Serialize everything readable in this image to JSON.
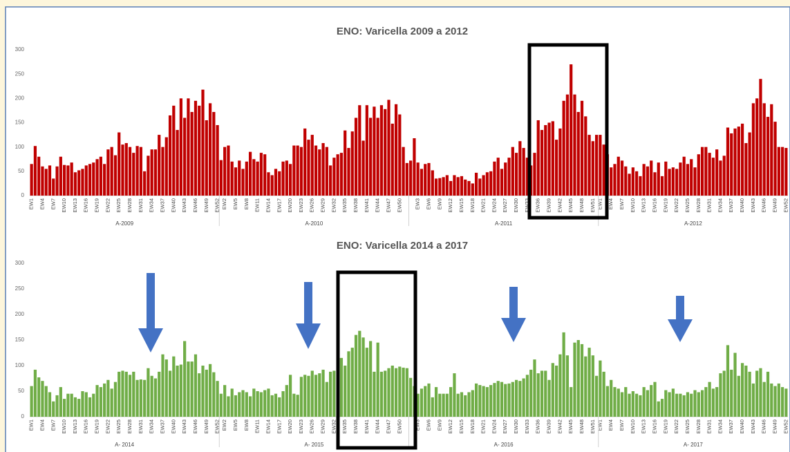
{
  "chart_data": [
    {
      "type": "bar",
      "title": "ENO: Varicella 2009 a 2012",
      "color": "#c00000",
      "ylim": [
        0,
        300
      ],
      "yticks": [
        0,
        50,
        100,
        150,
        200,
        250,
        300
      ],
      "groups": [
        {
          "name": "A-2009",
          "categories": [
            "EW1",
            null,
            null,
            "EW4",
            null,
            null,
            "EW7",
            null,
            null,
            "EW10",
            null,
            null,
            "EW13",
            null,
            null,
            "EW16",
            null,
            null,
            "EW19",
            null,
            null,
            "EW22",
            null,
            null,
            "EW25",
            null,
            null,
            "EW28",
            null,
            null,
            "EW31",
            null,
            null,
            "EW34",
            null,
            null,
            "EW37",
            null,
            null,
            "EW40",
            null,
            null,
            "EW43",
            null,
            null,
            "EW46",
            null,
            null,
            "EW49",
            null,
            null,
            "EW52"
          ],
          "values": [
            65,
            102,
            80,
            60,
            55,
            62,
            35,
            60,
            80,
            63,
            62,
            68,
            48,
            52,
            55,
            62,
            65,
            68,
            75,
            80,
            65,
            95,
            100,
            83,
            130,
            105,
            108,
            100,
            88,
            102,
            100,
            50,
            82,
            95,
            95,
            125,
            100,
            120,
            165,
            185,
            135,
            200,
            160,
            200,
            172,
            195,
            185,
            218,
            155,
            190,
            172,
            145
          ]
        },
        {
          "name": "A-2010",
          "categories": [
            null,
            "EW2",
            null,
            null,
            "EW5",
            null,
            null,
            "EW8",
            null,
            null,
            "EW11",
            null,
            null,
            "EW14",
            null,
            null,
            "EW17",
            null,
            null,
            "EW20",
            null,
            null,
            "EW23",
            null,
            null,
            "EW26",
            null,
            null,
            "EW29",
            null,
            null,
            "EW32",
            null,
            null,
            "EW35",
            null,
            null,
            "EW38",
            null,
            null,
            "EW41",
            null,
            null,
            "EW44",
            null,
            null,
            "EW47",
            null,
            null,
            "EW50",
            null,
            null
          ],
          "values": [
            73,
            100,
            103,
            70,
            58,
            72,
            55,
            70,
            90,
            75,
            70,
            88,
            85,
            48,
            42,
            55,
            50,
            70,
            72,
            65,
            103,
            103,
            100,
            138,
            115,
            125,
            103,
            95,
            108,
            100,
            62,
            78,
            85,
            88,
            134,
            98,
            132,
            160,
            186,
            113,
            186,
            160,
            183,
            160,
            186,
            178,
            197,
            148,
            188,
            167,
            100,
            67
          ]
        },
        {
          "name": "A-2011",
          "categories": [
            null,
            null,
            "EW3",
            null,
            null,
            "EW6",
            null,
            null,
            "EW9",
            null,
            null,
            "EW12",
            null,
            null,
            "EW15",
            null,
            null,
            "EW18",
            null,
            null,
            "EW21",
            null,
            null,
            "EW24",
            null,
            null,
            "EW27",
            null,
            null,
            "EW30",
            null,
            null,
            "EW33",
            null,
            null,
            "EW36",
            null,
            null,
            "EW39",
            null,
            null,
            "EW42",
            null,
            null,
            "EW45",
            null,
            null,
            "EW48",
            null,
            null,
            "EW51",
            null
          ],
          "values": [
            72,
            118,
            68,
            55,
            65,
            67,
            52,
            35,
            36,
            38,
            42,
            30,
            42,
            38,
            40,
            33,
            30,
            25,
            47,
            35,
            42,
            48,
            50,
            70,
            78,
            55,
            68,
            78,
            100,
            88,
            112,
            98,
            78,
            62,
            88,
            155,
            135,
            145,
            150,
            153,
            115,
            138,
            195,
            208,
            270,
            208,
            172,
            195,
            163,
            125,
            112,
            125
          ]
        },
        {
          "name": "A-2012",
          "categories": [
            "EW1",
            null,
            null,
            "EW4",
            null,
            null,
            "EW7",
            null,
            null,
            "EW10",
            null,
            null,
            "EW13",
            null,
            null,
            "EW16",
            null,
            null,
            "EW19",
            null,
            null,
            "EW22",
            null,
            null,
            "EW25",
            null,
            null,
            "EW28",
            null,
            null,
            "EW31",
            null,
            null,
            "EW34",
            null,
            null,
            "EW37",
            null,
            null,
            "EW40",
            null,
            null,
            "EW43",
            null,
            null,
            "EW46",
            null,
            null,
            "EW49",
            null,
            null,
            "EW52"
          ],
          "values": [
            125,
            105,
            85,
            58,
            65,
            80,
            72,
            60,
            45,
            58,
            50,
            40,
            65,
            60,
            72,
            48,
            68,
            40,
            70,
            55,
            58,
            55,
            68,
            80,
            65,
            75,
            58,
            85,
            100,
            100,
            88,
            78,
            95,
            72,
            82,
            140,
            128,
            138,
            142,
            148,
            108,
            130,
            190,
            200,
            240,
            190,
            162,
            188,
            152,
            100,
            100,
            98
          ]
        }
      ]
    },
    {
      "type": "bar",
      "title": "ENO: Varicella 2014 a 2017",
      "color": "#70ad47",
      "ylim": [
        0,
        300
      ],
      "yticks": [
        0,
        50,
        100,
        150,
        200,
        250,
        300
      ],
      "groups": [
        {
          "name": "A- 2014",
          "categories": [
            "EW1",
            null,
            null,
            "EW4",
            null,
            null,
            "EW7",
            null,
            null,
            "EW10",
            null,
            null,
            "EW13",
            null,
            null,
            "EW16",
            null,
            null,
            "EW19",
            null,
            null,
            "EW22",
            null,
            null,
            "EW25",
            null,
            null,
            "EW28",
            null,
            null,
            "EW31",
            null,
            null,
            "EW34",
            null,
            null,
            "EW37",
            null,
            null,
            "EW40",
            null,
            null,
            "EW43",
            null,
            null,
            "EW46",
            null,
            null,
            "EW49",
            null,
            null,
            "EW52"
          ],
          "values": [
            60,
            92,
            77,
            70,
            60,
            48,
            30,
            42,
            58,
            35,
            45,
            45,
            38,
            35,
            50,
            48,
            38,
            45,
            62,
            58,
            65,
            72,
            55,
            68,
            88,
            90,
            88,
            82,
            88,
            72,
            73,
            72,
            95,
            80,
            75,
            88,
            122,
            112,
            90,
            118,
            100,
            102,
            148,
            108,
            108,
            122,
            85,
            100,
            92,
            103,
            87,
            70
          ]
        },
        {
          "name": "A- 2015",
          "categories": [
            null,
            "EW2",
            null,
            null,
            "EW5",
            null,
            null,
            "EW8",
            null,
            null,
            "EW11",
            null,
            null,
            "EW14",
            null,
            null,
            "EW17",
            null,
            null,
            "EW20",
            null,
            null,
            "EW23",
            null,
            null,
            "EW26",
            null,
            null,
            "EW29",
            null,
            null,
            "EW32",
            null,
            null,
            "EW35",
            null,
            null,
            "EW38",
            null,
            null,
            "EW41",
            null,
            null,
            "EW44",
            null,
            null,
            "EW47",
            null,
            null,
            "EW50",
            null,
            null
          ],
          "values": [
            45,
            62,
            40,
            55,
            42,
            48,
            52,
            48,
            40,
            55,
            50,
            48,
            52,
            55,
            42,
            45,
            38,
            50,
            62,
            82,
            45,
            43,
            78,
            82,
            80,
            90,
            82,
            85,
            92,
            68,
            88,
            90,
            92,
            115,
            100,
            128,
            135,
            160,
            168,
            155,
            135,
            148,
            88,
            145,
            88,
            90,
            95,
            100,
            95,
            98,
            96,
            95
          ]
        },
        {
          "name": "A- 2016",
          "categories": [
            null,
            null,
            "EW3",
            null,
            null,
            "EW6",
            null,
            null,
            "EW9",
            null,
            null,
            "EW12",
            null,
            null,
            "EW15",
            null,
            null,
            "EW18",
            null,
            null,
            "EW21",
            null,
            null,
            "EW24",
            null,
            null,
            "EW27",
            null,
            null,
            "EW30",
            null,
            null,
            "EW33",
            null,
            null,
            "EW36",
            null,
            null,
            "EW39",
            null,
            null,
            "EW42",
            null,
            null,
            "EW45",
            null,
            null,
            "EW48",
            null,
            null,
            "EW51",
            null
          ],
          "values": [
            76,
            60,
            45,
            55,
            60,
            65,
            38,
            58,
            45,
            45,
            45,
            58,
            85,
            45,
            48,
            42,
            48,
            52,
            65,
            62,
            60,
            58,
            62,
            66,
            70,
            68,
            64,
            65,
            68,
            72,
            70,
            75,
            82,
            92,
            112,
            85,
            90,
            90,
            72,
            105,
            100,
            122,
            165,
            120,
            58,
            145,
            150,
            142,
            118,
            135,
            120,
            80
          ]
        },
        {
          "name": "A- 2017",
          "categories": [
            "EW1",
            null,
            null,
            "EW4",
            null,
            null,
            "EW7",
            null,
            null,
            "EW10",
            null,
            null,
            "EW13",
            null,
            null,
            "EW16",
            null,
            null,
            "EW19",
            null,
            null,
            "EW22",
            null,
            null,
            "EW25",
            null,
            null,
            "EW28",
            null,
            null,
            "EW31",
            null,
            null,
            "EW34",
            null,
            null,
            "EW37",
            null,
            null,
            "EW40",
            null,
            null,
            "EW43",
            null,
            null,
            "EW46",
            null,
            null,
            "EW49",
            null,
            null,
            "EW52"
          ],
          "values": [
            110,
            88,
            60,
            72,
            58,
            55,
            48,
            58,
            45,
            50,
            45,
            42,
            58,
            52,
            62,
            68,
            30,
            35,
            52,
            48,
            55,
            45,
            45,
            42,
            48,
            45,
            52,
            48,
            52,
            58,
            68,
            55,
            58,
            85,
            90,
            140,
            92,
            125,
            80,
            105,
            100,
            88,
            65,
            90,
            95,
            68,
            88,
            65,
            60,
            65,
            58,
            55
          ]
        }
      ]
    }
  ]
}
